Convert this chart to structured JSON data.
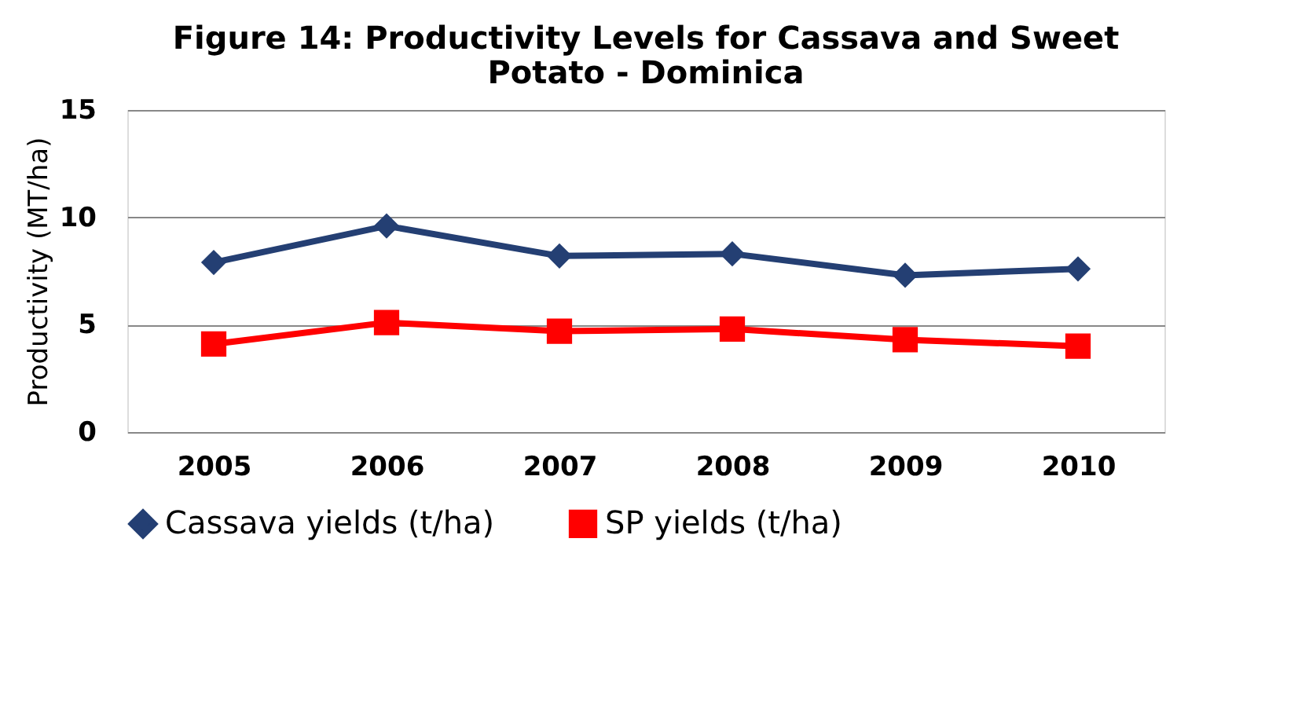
{
  "chart_data": {
    "type": "line",
    "title": "Figure 14: Productivity Levels for Cassava and Sweet Potato - Dominica",
    "ylabel": "Productivity (MT/ha)",
    "categories": [
      "2005",
      "2006",
      "2007",
      "2008",
      "2009",
      "2010"
    ],
    "series": [
      {
        "name": "Cassava yields (t/ha)",
        "color": "#243f73",
        "marker": "diamond",
        "values": [
          7.9,
          9.6,
          8.2,
          8.3,
          7.3,
          7.6
        ]
      },
      {
        "name": "SP yields (t/ha)",
        "color": "#ff0000",
        "marker": "square",
        "values": [
          4.1,
          5.1,
          4.7,
          4.8,
          4.3,
          4.0
        ]
      }
    ],
    "ylim": [
      0,
      15
    ],
    "yticks": [
      0,
      5,
      10,
      15
    ],
    "grid": "y",
    "legend": "bottom"
  }
}
